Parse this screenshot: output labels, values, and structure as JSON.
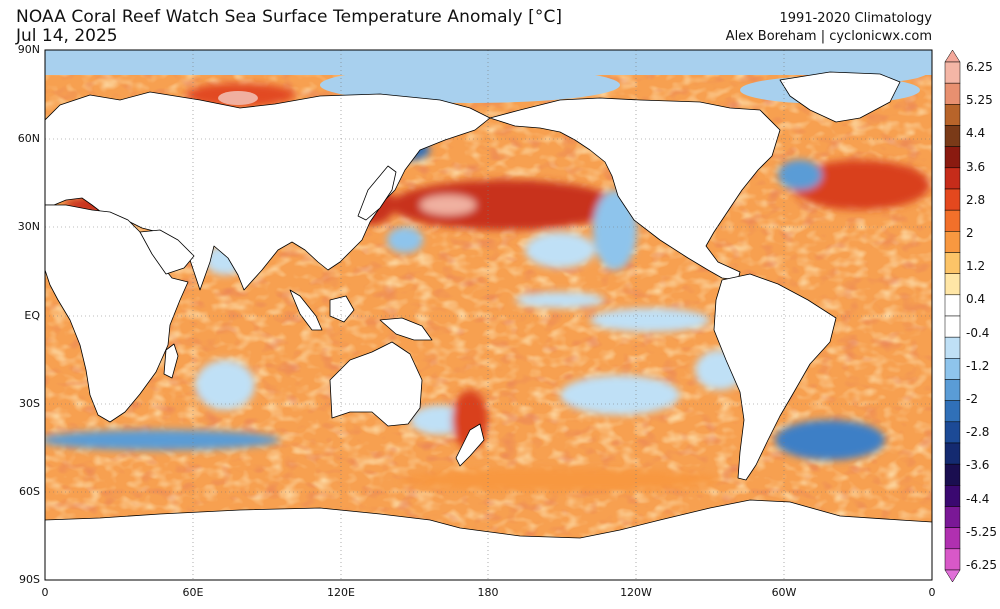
{
  "header": {
    "title": "NOAA Coral Reef Watch Sea Surface Temperature Anomaly [°C]",
    "date": "Jul 14, 2025",
    "climatology": "1991-2020 Climatology",
    "credit": "Alex Boreham | cyclonicwx.com"
  },
  "map": {
    "projection": "plate-carree",
    "central_longitude": 180,
    "lat_labels": [
      "90N",
      "60N",
      "30N",
      "EQ",
      "30S",
      "60S",
      "90S"
    ],
    "lon_labels": [
      "0",
      "60E",
      "120E",
      "180",
      "120W",
      "60W",
      "0"
    ],
    "gridlines": true
  },
  "colorbar": {
    "labels": [
      "6.25",
      "5.25",
      "4.4",
      "3.6",
      "2.8",
      "2",
      "1.2",
      "0.4",
      "-0.4",
      "-1.2",
      "-2",
      "-2.8",
      "-3.6",
      "-4.4",
      "-5.25",
      "-6.25"
    ],
    "extend": "both",
    "colors": [
      "#f4b6a6",
      "#e89070",
      "#b8642a",
      "#7a3a18",
      "#8a1a10",
      "#c62c1a",
      "#e4481e",
      "#f2702a",
      "#f89840",
      "#fcc468",
      "#ffe6a6",
      "#ffffff",
      "#ffffff",
      "#bfe0f6",
      "#8ec4ec",
      "#5a9cd6",
      "#3070b8",
      "#1c4a96",
      "#142a70",
      "#1a0e50",
      "#3a0870",
      "#7a1896",
      "#b030b0",
      "#d858c8"
    ],
    "top_arrow_color": "#f4a89a",
    "bottom_arrow_color": "#e070d8"
  },
  "palette": {
    "land": "#ffffff",
    "land_outline": "#000000",
    "arctic_ice": "#a8d0ee",
    "warm_background": "#f7a050",
    "hot": "#c8301a",
    "very_hot": "#f0b0a0",
    "cool": "#8ec4ec",
    "cold": "#3d7fc6"
  }
}
